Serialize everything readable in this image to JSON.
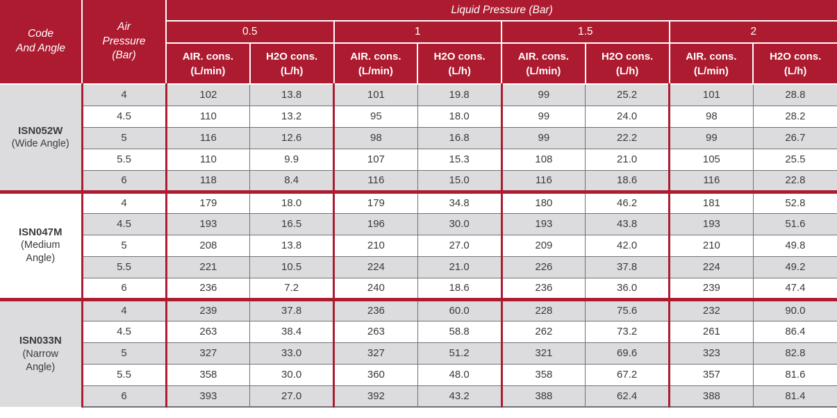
{
  "colors": {
    "header_red": "#AC1B2F",
    "row_gray": "#DCDCDE",
    "row_white": "#FFFFFF",
    "text_dark": "#3A3A3C",
    "grid_gray": "#707074"
  },
  "header": {
    "code_col": {
      "line1": "Code",
      "line2": "And Angle"
    },
    "air_col": {
      "line1": "Air",
      "line2": "Pressure",
      "line3": "(Bar)"
    },
    "liquid_title": "Liquid Pressure (Bar)",
    "pressures": [
      "0.5",
      "1",
      "1.5",
      "2"
    ],
    "sub_air": {
      "line1": "AIR. cons.",
      "line2": "(L/min)"
    },
    "sub_h2o": {
      "line1": "H2O cons.",
      "line2": "(L/h)"
    }
  },
  "groups": [
    {
      "code": "ISN052W",
      "angle_lines": [
        "(Wide Angle)"
      ],
      "code_bg": "gray",
      "stripe_start": "gray",
      "rows": [
        {
          "air_pressure": "4",
          "values": [
            "102",
            "13.8",
            "101",
            "19.8",
            "99",
            "25.2",
            "101",
            "28.8"
          ]
        },
        {
          "air_pressure": "4.5",
          "values": [
            "110",
            "13.2",
            "95",
            "18.0",
            "99",
            "24.0",
            "98",
            "28.2"
          ]
        },
        {
          "air_pressure": "5",
          "values": [
            "116",
            "12.6",
            "98",
            "16.8",
            "99",
            "22.2",
            "99",
            "26.7"
          ]
        },
        {
          "air_pressure": "5.5",
          "values": [
            "110",
            "9.9",
            "107",
            "15.3",
            "108",
            "21.0",
            "105",
            "25.5"
          ]
        },
        {
          "air_pressure": "6",
          "values": [
            "118",
            "8.4",
            "116",
            "15.0",
            "116",
            "18.6",
            "116",
            "22.8"
          ]
        }
      ]
    },
    {
      "code": "ISN047M",
      "angle_lines": [
        "(Medium",
        "Angle)"
      ],
      "code_bg": "white",
      "stripe_start": "white",
      "rows": [
        {
          "air_pressure": "4",
          "values": [
            "179",
            "18.0",
            "179",
            "34.8",
            "180",
            "46.2",
            "181",
            "52.8"
          ]
        },
        {
          "air_pressure": "4.5",
          "values": [
            "193",
            "16.5",
            "196",
            "30.0",
            "193",
            "43.8",
            "193",
            "51.6"
          ]
        },
        {
          "air_pressure": "5",
          "values": [
            "208",
            "13.8",
            "210",
            "27.0",
            "209",
            "42.0",
            "210",
            "49.8"
          ]
        },
        {
          "air_pressure": "5.5",
          "values": [
            "221",
            "10.5",
            "224",
            "21.0",
            "226",
            "37.8",
            "224",
            "49.2"
          ]
        },
        {
          "air_pressure": "6",
          "values": [
            "236",
            "7.2",
            "240",
            "18.6",
            "236",
            "36.0",
            "239",
            "47.4"
          ]
        }
      ]
    },
    {
      "code": "ISN033N",
      "angle_lines": [
        "(Narrow",
        "Angle)"
      ],
      "code_bg": "gray",
      "stripe_start": "gray",
      "rows": [
        {
          "air_pressure": "4",
          "values": [
            "239",
            "37.8",
            "236",
            "60.0",
            "228",
            "75.6",
            "232",
            "90.0"
          ]
        },
        {
          "air_pressure": "4.5",
          "values": [
            "263",
            "38.4",
            "263",
            "58.8",
            "262",
            "73.2",
            "261",
            "86.4"
          ]
        },
        {
          "air_pressure": "5",
          "values": [
            "327",
            "33.0",
            "327",
            "51.2",
            "321",
            "69.6",
            "323",
            "82.8"
          ]
        },
        {
          "air_pressure": "5.5",
          "values": [
            "358",
            "30.0",
            "360",
            "48.0",
            "358",
            "67.2",
            "357",
            "81.6"
          ]
        },
        {
          "air_pressure": "6",
          "values": [
            "393",
            "27.0",
            "392",
            "43.2",
            "388",
            "62.4",
            "388",
            "81.4"
          ]
        }
      ]
    }
  ]
}
